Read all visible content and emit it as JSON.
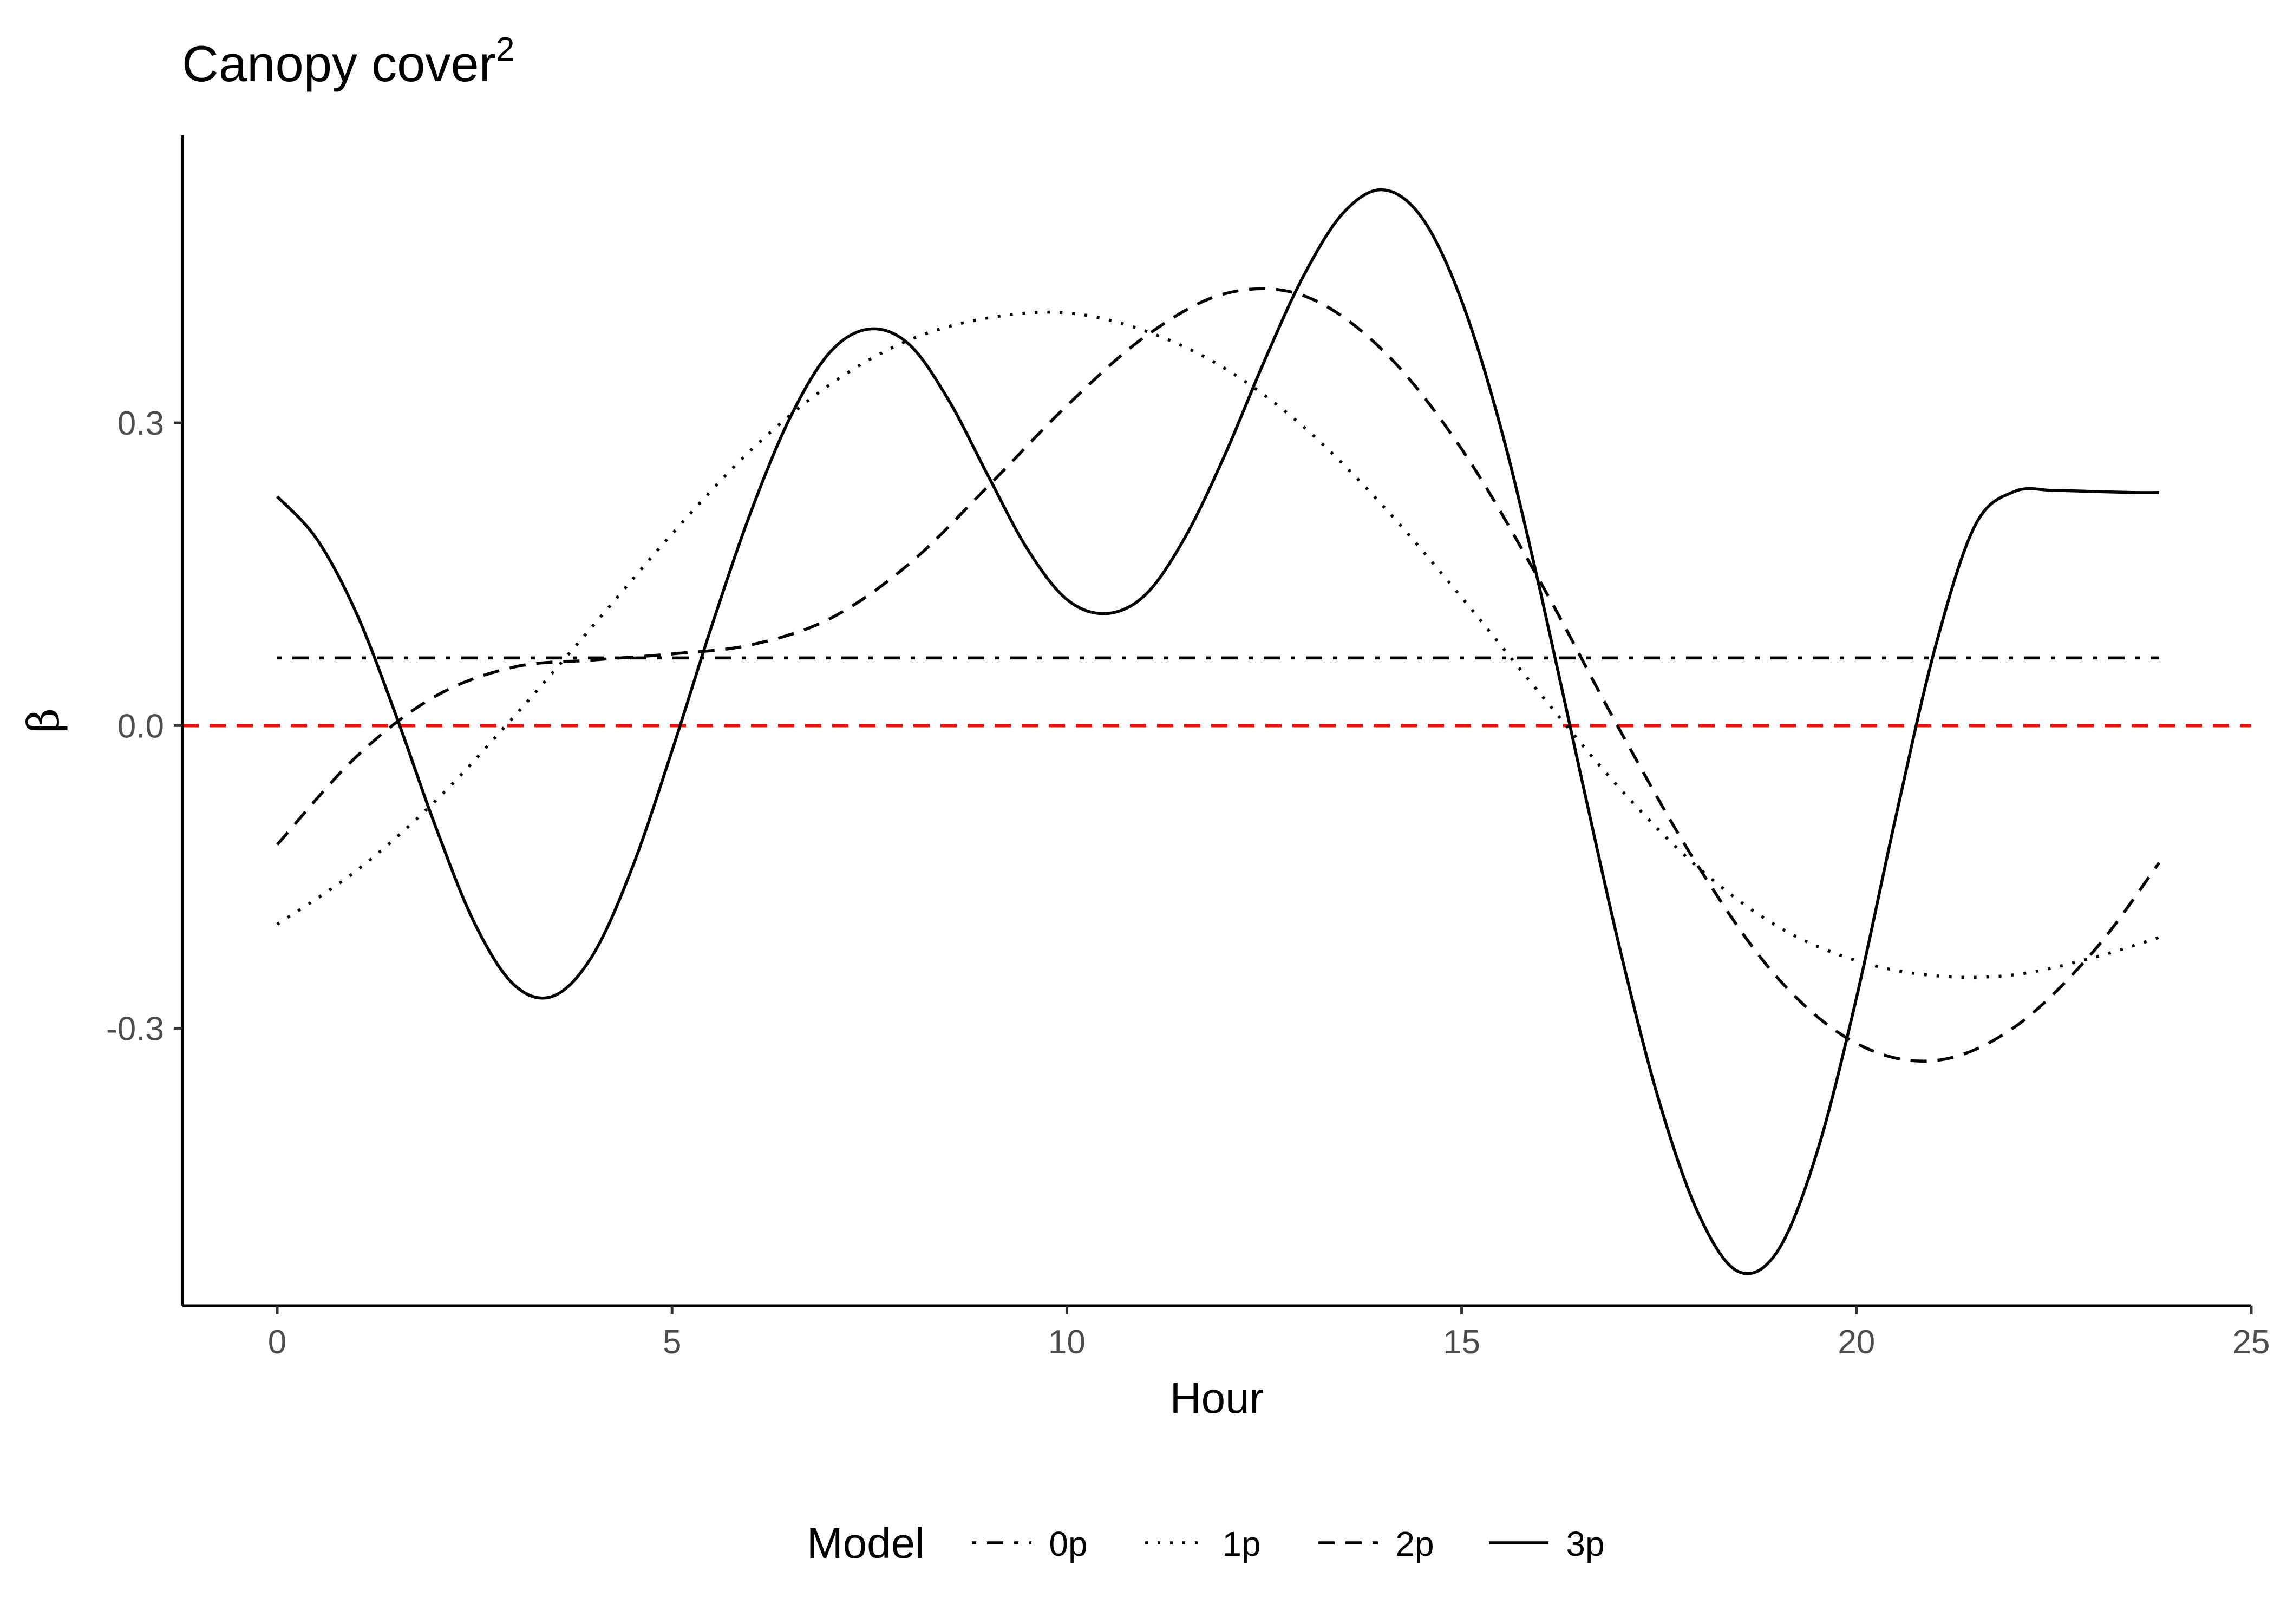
{
  "chart_data": {
    "type": "line",
    "title": "Canopy cover",
    "title_superscript": "2",
    "xlabel": "Hour",
    "ylabel": "β",
    "xlim": [
      -1.2,
      25
    ],
    "ylim": [
      -0.575,
      0.585
    ],
    "x_ticks": [
      0,
      5,
      10,
      15,
      20,
      25
    ],
    "x_tick_labels": [
      "0",
      "5",
      "10",
      "15",
      "20",
      "25"
    ],
    "y_ticks": [
      -0.3,
      0.0,
      0.3
    ],
    "y_tick_labels": [
      "-0.3",
      "0.0",
      "0.3"
    ],
    "grid": false,
    "legend_position": "bottom",
    "legend_title": "Model",
    "reference_line": {
      "y": 0.0,
      "color": "#ff0000",
      "linetype": "dashed"
    },
    "series": [
      {
        "name": "0p",
        "linetype": "dotdash",
        "color": "#000000",
        "x": [
          0,
          23.833
        ],
        "y": [
          0.067,
          0.067
        ]
      },
      {
        "name": "1p",
        "linetype": "dotted",
        "color": "#000000",
        "x": [
          0,
          1,
          2,
          3,
          4,
          5,
          6,
          7,
          8,
          9,
          10,
          11,
          12,
          13,
          14,
          15,
          16,
          17,
          18,
          19,
          20,
          21,
          22,
          23,
          23.833
        ],
        "y": [
          -0.197,
          -0.144,
          -0.075,
          0.009,
          0.099,
          0.19,
          0.273,
          0.338,
          0.382,
          0.404,
          0.409,
          0.391,
          0.354,
          0.296,
          0.218,
          0.127,
          0.031,
          -0.062,
          -0.141,
          -0.199,
          -0.233,
          -0.248,
          -0.247,
          -0.23,
          -0.21
        ]
      },
      {
        "name": "2p",
        "linetype": "dashed",
        "color": "#000000",
        "x": [
          0,
          1,
          2,
          3,
          4,
          5,
          6,
          7,
          8,
          9,
          10,
          11,
          12,
          13,
          14,
          15,
          16,
          17,
          18,
          19,
          20,
          21,
          22,
          23,
          23.833
        ],
        "y": [
          -0.118,
          -0.031,
          0.029,
          0.058,
          0.065,
          0.071,
          0.08,
          0.106,
          0.16,
          0.237,
          0.317,
          0.386,
          0.428,
          0.426,
          0.372,
          0.274,
          0.142,
          -0.004,
          -0.14,
          -0.25,
          -0.315,
          -0.332,
          -0.299,
          -0.224,
          -0.136
        ]
      },
      {
        "name": "3p",
        "linetype": "solid",
        "color": "#000000",
        "x": [
          0,
          0.5,
          1,
          1.5,
          2,
          2.5,
          3,
          3.5,
          4,
          4.5,
          5,
          5.5,
          6,
          6.5,
          7,
          7.5,
          8,
          8.5,
          9,
          9.5,
          10,
          10.5,
          11,
          11.5,
          12,
          12.5,
          13,
          13.5,
          14,
          14.5,
          15,
          15.5,
          16,
          16.5,
          17,
          17.5,
          18,
          18.5,
          19,
          19.5,
          20,
          20.5,
          21,
          21.5,
          22,
          22.5,
          23,
          23.5,
          23.833
        ],
        "y": [
          0.227,
          0.185,
          0.112,
          0.011,
          -0.099,
          -0.196,
          -0.257,
          -0.268,
          -0.227,
          -0.14,
          -0.025,
          0.098,
          0.212,
          0.306,
          0.37,
          0.393,
          0.378,
          0.323,
          0.248,
          0.175,
          0.125,
          0.111,
          0.13,
          0.187,
          0.268,
          0.361,
          0.446,
          0.508,
          0.531,
          0.503,
          0.421,
          0.294,
          0.132,
          -0.046,
          -0.22,
          -0.372,
          -0.484,
          -0.541,
          -0.521,
          -0.423,
          -0.27,
          -0.09,
          0.078,
          0.198,
          0.232,
          0.233,
          0.232,
          0.231,
          0.231
        ]
      }
    ]
  }
}
